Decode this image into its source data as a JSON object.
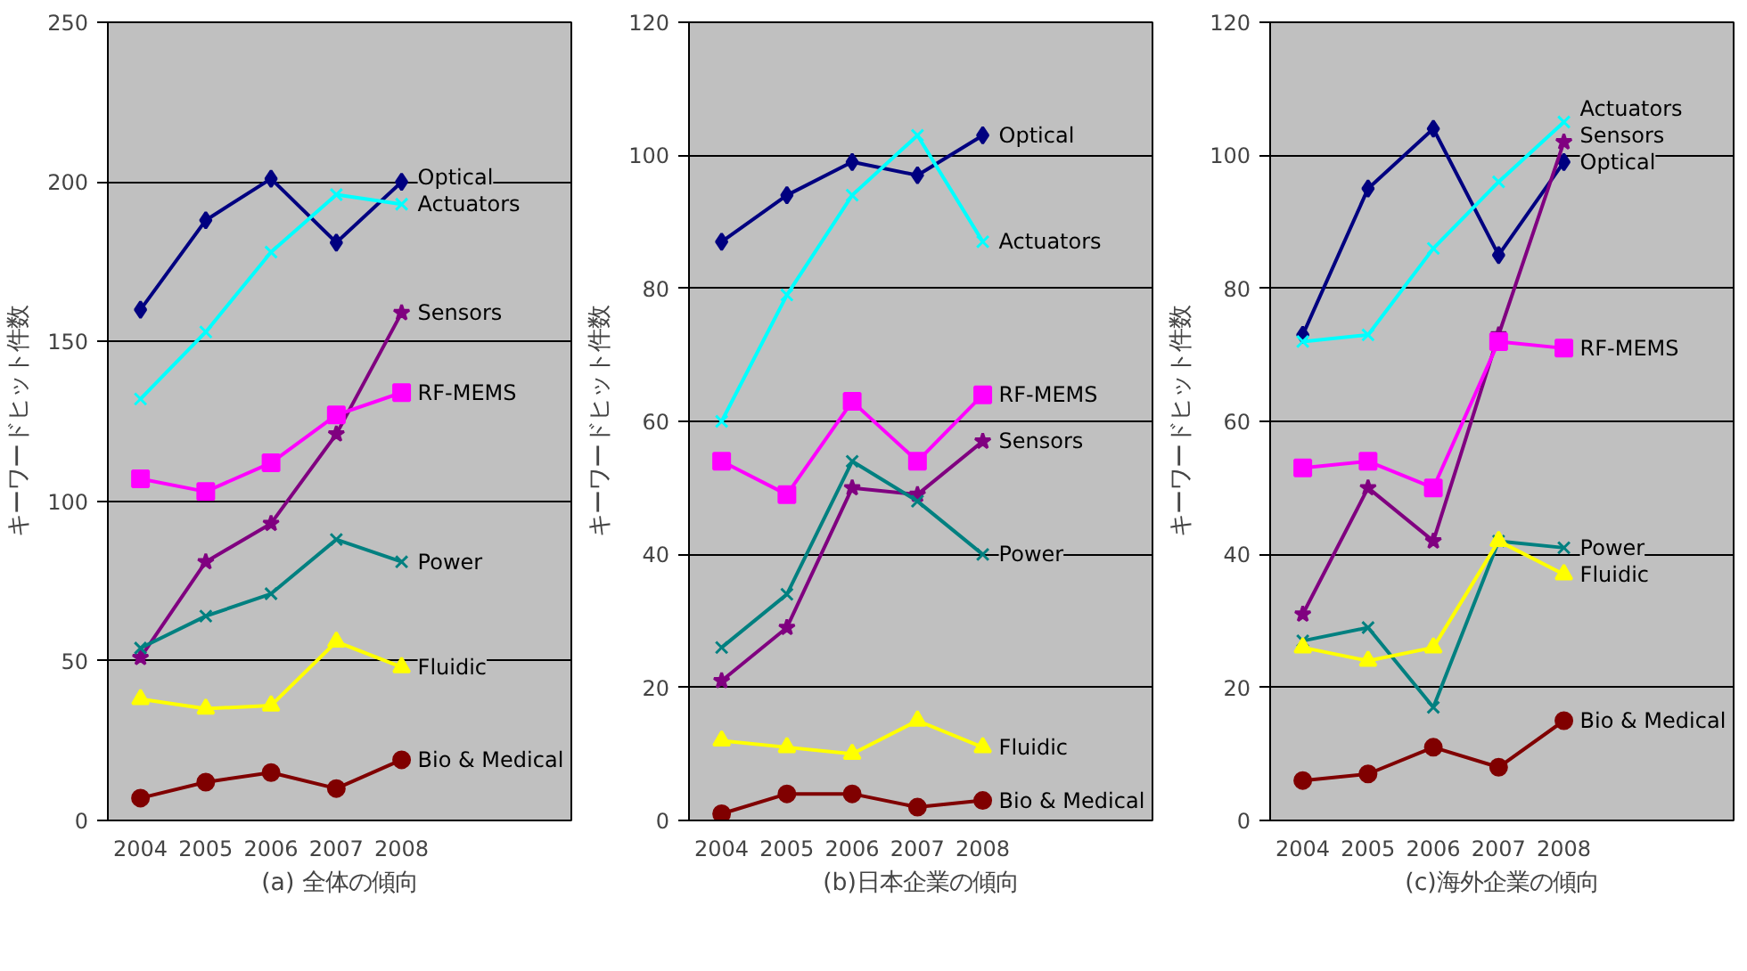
{
  "chart_data": [
    {
      "type": "line",
      "xlabel": "(a) 全体の傾向",
      "ylabel": "キーワードヒット件数",
      "categories": [
        "2004",
        "2005",
        "2006",
        "2007",
        "2008"
      ],
      "ylim": [
        0,
        250
      ],
      "yticks": [
        0,
        50,
        100,
        150,
        200,
        250
      ],
      "grid": "y",
      "series": [
        {
          "name": "Optical",
          "color": "#000080",
          "marker": "diamond",
          "values": [
            160,
            188,
            201,
            181,
            200
          ]
        },
        {
          "name": "Actuators",
          "color": "#00ffff",
          "marker": "cross",
          "values": [
            132,
            153,
            178,
            196,
            193
          ]
        },
        {
          "name": "Sensors",
          "color": "#800080",
          "marker": "star",
          "values": [
            51,
            81,
            93,
            121,
            159
          ]
        },
        {
          "name": "RF-MEMS",
          "color": "#ff00ff",
          "marker": "square",
          "values": [
            107,
            103,
            112,
            127,
            134
          ]
        },
        {
          "name": "Power",
          "color": "#008080",
          "marker": "cross",
          "values": [
            54,
            64,
            71,
            88,
            81
          ]
        },
        {
          "name": "Fluidic",
          "color": "#ffff00",
          "marker": "triangle",
          "values": [
            38,
            35,
            36,
            56,
            48
          ]
        },
        {
          "name": "Bio & Medical",
          "color": "#800000",
          "marker": "circle",
          "values": [
            7,
            12,
            15,
            10,
            19
          ]
        }
      ]
    },
    {
      "type": "line",
      "xlabel": "(b)日本企業の傾向",
      "ylabel": "キーワードヒット件数",
      "categories": [
        "2004",
        "2005",
        "2006",
        "2007",
        "2008"
      ],
      "ylim": [
        0,
        120
      ],
      "yticks": [
        0,
        20,
        40,
        60,
        80,
        100,
        120
      ],
      "grid": "y",
      "series": [
        {
          "name": "Optical",
          "color": "#000080",
          "marker": "diamond",
          "values": [
            87,
            94,
            99,
            97,
            103
          ]
        },
        {
          "name": "Actuators",
          "color": "#00ffff",
          "marker": "cross",
          "values": [
            60,
            79,
            94,
            103,
            87
          ]
        },
        {
          "name": "Sensors",
          "color": "#800080",
          "marker": "star",
          "values": [
            21,
            29,
            50,
            49,
            57
          ]
        },
        {
          "name": "RF-MEMS",
          "color": "#ff00ff",
          "marker": "square",
          "values": [
            54,
            49,
            63,
            54,
            64
          ]
        },
        {
          "name": "Power",
          "color": "#008080",
          "marker": "cross",
          "values": [
            26,
            34,
            54,
            48,
            40
          ]
        },
        {
          "name": "Fluidic",
          "color": "#ffff00",
          "marker": "triangle",
          "values": [
            12,
            11,
            10,
            15,
            11
          ]
        },
        {
          "name": "Bio & Medical",
          "color": "#800000",
          "marker": "circle",
          "values": [
            1,
            4,
            4,
            2,
            3
          ]
        }
      ]
    },
    {
      "type": "line",
      "xlabel": "(c)海外企業の傾向",
      "ylabel": "キーワードヒット件数",
      "categories": [
        "2004",
        "2005",
        "2006",
        "2007",
        "2008"
      ],
      "ylim": [
        0,
        120
      ],
      "yticks": [
        0,
        20,
        40,
        60,
        80,
        100,
        120
      ],
      "grid": "y",
      "series": [
        {
          "name": "Optical",
          "color": "#000080",
          "marker": "diamond",
          "values": [
            73,
            95,
            104,
            85,
            99
          ]
        },
        {
          "name": "Actuators",
          "color": "#00ffff",
          "marker": "cross",
          "values": [
            72,
            73,
            86,
            96,
            105
          ]
        },
        {
          "name": "Sensors",
          "color": "#800080",
          "marker": "star",
          "values": [
            31,
            50,
            42,
            73,
            102
          ]
        },
        {
          "name": "RF-MEMS",
          "color": "#ff00ff",
          "marker": "square",
          "values": [
            53,
            54,
            50,
            72,
            71
          ]
        },
        {
          "name": "Power",
          "color": "#008080",
          "marker": "cross",
          "values": [
            27,
            29,
            17,
            42,
            41
          ]
        },
        {
          "name": "Fluidic",
          "color": "#ffff00",
          "marker": "triangle",
          "values": [
            26,
            24,
            26,
            42,
            37
          ]
        },
        {
          "name": "Bio & Medical",
          "color": "#800000",
          "marker": "circle",
          "values": [
            6,
            7,
            11,
            8,
            15
          ]
        }
      ]
    }
  ]
}
